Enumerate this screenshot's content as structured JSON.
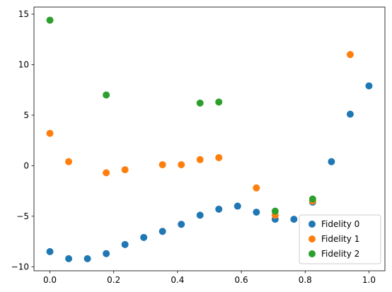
{
  "chart_data": {
    "type": "scatter",
    "title": "",
    "xlabel": "",
    "ylabel": "",
    "xlim": [
      -0.05,
      1.05
    ],
    "ylim": [
      -10.4,
      15.7
    ],
    "xticks": [
      0.0,
      0.2,
      0.4,
      0.6,
      0.8,
      1.0
    ],
    "xtick_labels": [
      "0.0",
      "0.2",
      "0.4",
      "0.6",
      "0.8",
      "1.0"
    ],
    "yticks": [
      -10,
      -5,
      0,
      5,
      10,
      15
    ],
    "ytick_labels": [
      "−10",
      "−5",
      "0",
      "5",
      "10",
      "15"
    ],
    "grid": false,
    "legend_position": "bottom-right",
    "series": [
      {
        "name": "Fidelity 0",
        "color": "#1f77b4",
        "x": [
          0.0,
          0.0588,
          0.1176,
          0.1765,
          0.2353,
          0.2941,
          0.3529,
          0.4118,
          0.4706,
          0.5294,
          0.5882,
          0.6471,
          0.7059,
          0.7647,
          0.8235,
          0.8824,
          0.9412,
          1.0
        ],
        "y": [
          -8.5,
          -9.2,
          -9.2,
          -8.7,
          -7.8,
          -7.1,
          -6.5,
          -5.8,
          -4.9,
          -4.3,
          -4.0,
          -4.6,
          -5.3,
          -5.3,
          -3.6,
          0.4,
          5.1,
          7.9
        ]
      },
      {
        "name": "Fidelity 1",
        "color": "#ff7f0e",
        "x": [
          0.0,
          0.0588,
          0.1765,
          0.2353,
          0.3529,
          0.4118,
          0.4706,
          0.5294,
          0.6471,
          0.7059,
          0.8235,
          0.9412
        ],
        "y": [
          3.2,
          0.4,
          -0.7,
          -0.4,
          0.1,
          0.1,
          0.6,
          0.8,
          -2.2,
          -4.9,
          -3.5,
          11.0
        ]
      },
      {
        "name": "Fidelity 2",
        "color": "#2ca02c",
        "x": [
          0.0,
          0.1765,
          0.4706,
          0.5294,
          0.7059,
          0.8235
        ],
        "y": [
          14.4,
          7.0,
          6.2,
          6.3,
          -4.5,
          -3.3
        ]
      }
    ]
  }
}
